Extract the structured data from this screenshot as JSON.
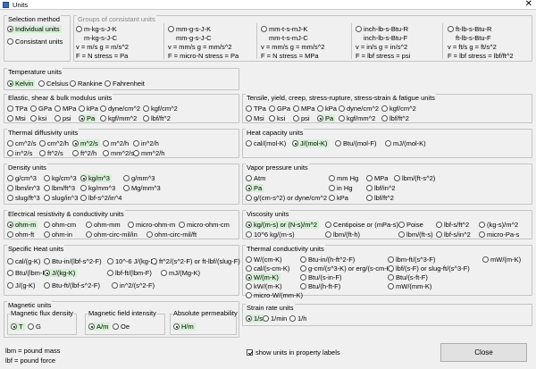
{
  "window": {
    "title": "Units",
    "close": "✕"
  },
  "selection_method": {
    "title": "Selection method",
    "options": [
      "Individual units",
      "Consistant units"
    ]
  },
  "consistent_groups": {
    "title": "Groups of consistant units",
    "cols": [
      {
        "label": "m-kg-s-J-K",
        "line1": "m-kg-s-J-C",
        "line2": "v = m/s    g = m/s^2",
        "line3": "F = N      stress = Pa"
      },
      {
        "label": "mm-g-s-J-K",
        "line1": "mm-g-s-J-C",
        "line2": "v = mm/s   g = mm/s^2",
        "line3": "F = micro-N   stress = Pa"
      },
      {
        "label": "mm-t-s-mJ-K",
        "line1": "mm-t-s-mJ-C",
        "line2": "v = mm/s   g = mm/s^2",
        "line3": "F = N      stress = MPa"
      },
      {
        "label": "inch-lb-s-Btu-R",
        "line1": "inch-lb-s-Btu-F",
        "line2": "v = in/s   g = in/s^2",
        "line3": "F = lbf    stress = psi"
      },
      {
        "label": "ft-lb-s-Btu-R",
        "line1": "ft-lb-s-Btu-F",
        "line2": "v = ft/s   g = ft/s^2",
        "line3": "F = lbf   stress = lbf/ft^2"
      }
    ]
  },
  "temperature": {
    "title": "Temperature units",
    "options": [
      "Kelvin",
      "Celsius",
      "Rankine",
      "Fahrenheit"
    ]
  },
  "elastic": {
    "title": "Elastic, shear & bulk modulus units",
    "row1": [
      "TPa",
      "GPa",
      "MPa",
      "kPa",
      "dyne/cm^2",
      "kgf/cm^2"
    ],
    "row2": [
      "Msi",
      "ksi",
      "psi",
      "Pa",
      "kgf/mm^2",
      "lbf/ft^2"
    ]
  },
  "tensile": {
    "title": "Tensile, yield, creep, stress-rupture, stress-strain & fatigue units",
    "row1": [
      "TPa",
      "GPa",
      "MPa",
      "kPa",
      "dyne/cm^2",
      "kgf/cm^2"
    ],
    "row2": [
      "Msi",
      "ksi",
      "psi",
      "Pa",
      "kgf/mm^2",
      "lbf/ft^2"
    ]
  },
  "thermal_diff": {
    "title": "Thermal diffusivity units",
    "row1": [
      "cm^2/s",
      "cm^2/h",
      "m^2/s",
      "m^2/h",
      "in^2/h"
    ],
    "row2": [
      "in^2/s",
      "ft^2/s",
      "ft^2/h",
      "mm^2/s",
      "mm^2/h"
    ]
  },
  "heat_cap": {
    "title": "Heat capacity units",
    "row1": [
      "cal/(mol-K)",
      "J/(mol-K)",
      "Btu/(mol-F)",
      "mJ/(mol-K)"
    ]
  },
  "density": {
    "title": "Density units",
    "row1": [
      "g/cm^3",
      "kg/cm^3",
      "kg/m^3",
      "g/mm^3"
    ],
    "row2": [
      "lbm/in^3",
      "lbm/ft^3",
      "kg/mm^3",
      "Mg/mm^3"
    ],
    "row3": [
      "slug/ft^3",
      "slug/in^3",
      "lbf-s^2/in^4"
    ]
  },
  "vapor": {
    "title": "Vapor pressure units",
    "row1": [
      "Atm",
      "mm Hg",
      "MPa",
      "lbm/(ft-s^2)"
    ],
    "row2": [
      "Pa",
      "in Hg",
      "lbf/in^2"
    ],
    "row3": [
      "g/(cm-s^2) or dyne/cm^2",
      "kPa",
      "lbf/ft^2"
    ]
  },
  "elec": {
    "title": "Electrical resistivity & conductivity units",
    "row1": [
      "ohm-m",
      "ohm-cm",
      "ohm-mm",
      "micro-ohm-m",
      "micro-ohm-cm"
    ],
    "row2": [
      "ohm-ft",
      "ohm-in",
      "ohm-circ-mil/in",
      "ohm-circ-mil/ft"
    ]
  },
  "viscosity": {
    "title": "Viscosity units",
    "row1": [
      "kg/(m-s) or (N-s)/m^2",
      "Centipoise or (mPa-s)",
      "Poise",
      "lbf-s/ft^2",
      "(kg-s)/m^2"
    ],
    "row2": [
      "10^6 kg/(m-s)",
      "lbm/(ft-h)",
      "lbm/(ft-s)",
      "lbf-s/in^2",
      "micro-Pa-s"
    ]
  },
  "spec_heat": {
    "title": "Specific Heat units",
    "row1": [
      "cal/(g-K)",
      "Btu-in/(lbf-s^2-F)",
      "10^-6 J/(kg-K)",
      "ft^2/(s^2-F) or ft-lbf/(slug-F)"
    ],
    "row2": [
      "Btu/(lbm-F)",
      "J/(kg-K)",
      "lbf-ft/(lbm-F)",
      "mJ/(Mg-K)"
    ],
    "row3": [
      "J/(g-K)",
      "Btu-ft/(lbf-s^2-F)",
      "in^2/(s^2-F)"
    ]
  },
  "therm_cond": {
    "title": "Thermal conductivity units",
    "col1": [
      "W/(cm-K)",
      "cal/(s-cm-K)",
      "W/(m-K)",
      "kW/(m-K)",
      "micro-W/(mm-K)"
    ],
    "col2": [
      "Btu-in/(h-ft^2-F)",
      "g-cm/(s^3-K) or erg/(s-cm-K)",
      "Btu/(s-in-F)",
      "Btu/(h-ft-F)"
    ],
    "col3": [
      "lbm-ft/(s^3-F)",
      "lbf/(s-F) or slug-ft/(s^3-F)",
      "Btu/(s-ft-F)",
      "mW/(mm-K)"
    ],
    "col4": [
      "mW/(m-K)"
    ]
  },
  "magnetic": {
    "title": "Magnetic units",
    "flux": {
      "title": "Magnetic flux density",
      "options": [
        "T",
        "G"
      ]
    },
    "field": {
      "title": "Magnetic field intensity",
      "options": [
        "A/m",
        "Oe"
      ]
    },
    "perm": {
      "title": "Absolute permeability",
      "options": [
        "H/m"
      ]
    }
  },
  "strain": {
    "title": "Strain rate units",
    "options": [
      "1/s",
      "1/min",
      "1/h"
    ]
  },
  "footnotes": [
    "lbm = pound mass",
    "lbf = pound force"
  ],
  "show_units": "show units in property labels",
  "close_button": "Close"
}
